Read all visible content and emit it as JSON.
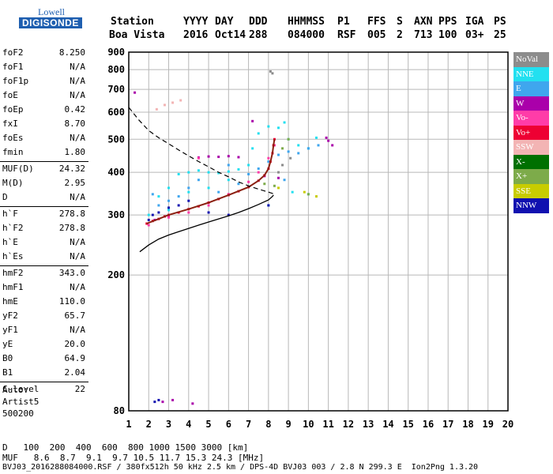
{
  "logo": {
    "line1": "Lowell",
    "line2": "DIGISONDE"
  },
  "header": {
    "row1": [
      "Station",
      "YYYY",
      "DAY",
      "DDD",
      "HHMMSS",
      "P1",
      "FFS",
      "S",
      "AXN",
      "PPS",
      "IGA",
      "PS"
    ],
    "row2": [
      "Boa Vista",
      "2016",
      "Oct14",
      "288",
      "084000",
      "RSF",
      "005",
      "2",
      "713",
      "100",
      "03+",
      "25"
    ]
  },
  "params": [
    {
      "k": "foF2",
      "v": "8.250"
    },
    {
      "k": "foF1",
      "v": "N/A"
    },
    {
      "k": "foF1p",
      "v": "N/A"
    },
    {
      "k": "foE",
      "v": "N/A"
    },
    {
      "k": "foEp",
      "v": "0.42"
    },
    {
      "k": "fxI",
      "v": "8.70"
    },
    {
      "k": "foEs",
      "v": "N/A"
    },
    {
      "k": "fmin",
      "v": "1.80"
    },
    {
      "k": "MUF(D)",
      "v": "24.32",
      "sep": true
    },
    {
      "k": "M(D)",
      "v": "2.95"
    },
    {
      "k": "D",
      "v": "N/A"
    },
    {
      "k": "h`F",
      "v": "278.8",
      "sep": true
    },
    {
      "k": "h`F2",
      "v": "278.8"
    },
    {
      "k": "h`E",
      "v": "N/A"
    },
    {
      "k": "h`Es",
      "v": "N/A"
    },
    {
      "k": "hmF2",
      "v": "343.0",
      "sep": true
    },
    {
      "k": "hmF1",
      "v": "N/A"
    },
    {
      "k": "hmE",
      "v": "110.0"
    },
    {
      "k": "yF2",
      "v": "65.7"
    },
    {
      "k": "yF1",
      "v": "N/A"
    },
    {
      "k": "yE",
      "v": "20.0"
    },
    {
      "k": "B0",
      "v": "64.9"
    },
    {
      "k": "B1",
      "v": "2.04"
    },
    {
      "k": "C-level",
      "v": "22",
      "sep": true
    }
  ],
  "auto": {
    "line1": "Auto:",
    "line2": "Artist5",
    "line3": "500200"
  },
  "legend": [
    {
      "label": "NoVal",
      "color": "#8c8c8c"
    },
    {
      "label": "NNE",
      "color": "#22e0f0"
    },
    {
      "label": "E",
      "color": "#3fa6ee"
    },
    {
      "label": "W",
      "color": "#aa00aa"
    },
    {
      "label": "Vo-",
      "color": "#ff3ca8"
    },
    {
      "label": "Vo+",
      "color": "#ee0033"
    },
    {
      "label": "SSW",
      "color": "#f3b4b4"
    },
    {
      "label": "X-",
      "color": "#007000"
    },
    {
      "label": "X+",
      "color": "#7dab4a"
    },
    {
      "label": "SSE",
      "color": "#c8cc00"
    },
    {
      "label": "NNW",
      "color": "#1010b0"
    }
  ],
  "bottom": {
    "d_label": "D",
    "d_values": "100  200  400  600  800 1000 1500 3000 [km]",
    "muf_label": "MUF",
    "muf_values": "8.6  8.7  9.1  9.7 10.5 11.7 15.3 24.3 [MHz]",
    "footer": "BVJ03_2016288084000.RSF / 380fx512h 50 kHz 2.5 km / DPS-4D BVJ03 003 / 2.8 N 299.3 E  Ion2Png 1.3.20"
  },
  "chart_data": {
    "type": "scatter",
    "title": "",
    "xlabel": "",
    "ylabel": "",
    "xlim": [
      1,
      20
    ],
    "ylim": [
      80,
      900
    ],
    "y_scale": "log",
    "x_ticks": [
      1,
      2,
      3,
      4,
      5,
      6,
      7,
      8,
      9,
      10,
      11,
      12,
      13,
      14,
      15,
      16,
      17,
      18,
      19,
      20
    ],
    "y_ticks": [
      80,
      200,
      300,
      400,
      500,
      600,
      700,
      800,
      900
    ],
    "grid": true,
    "series": [
      {
        "name": "NNE",
        "color": "#22e0f0",
        "points": [
          [
            2.0,
            300
          ],
          [
            2.5,
            340
          ],
          [
            3.0,
            360
          ],
          [
            3.5,
            395
          ],
          [
            4.0,
            400
          ],
          [
            4.5,
            405
          ],
          [
            5.0,
            400
          ],
          [
            5.5,
            398
          ],
          [
            6.0,
            402
          ],
          [
            6.5,
            408
          ],
          [
            7.0,
            420
          ],
          [
            7.2,
            470
          ],
          [
            7.5,
            520
          ],
          [
            8.0,
            545
          ],
          [
            8.5,
            540
          ],
          [
            9.0,
            500
          ],
          [
            9.5,
            480
          ],
          [
            10.0,
            470
          ],
          [
            10.4,
            505
          ],
          [
            9.2,
            350
          ],
          [
            10.0,
            345
          ],
          [
            6.0,
            380
          ],
          [
            5.0,
            360
          ],
          [
            4.0,
            350
          ],
          [
            3.0,
            310
          ],
          [
            8.8,
            560
          ],
          [
            8.0,
            320
          ]
        ]
      },
      {
        "name": "E",
        "color": "#3fa6ee",
        "points": [
          [
            2.5,
            320
          ],
          [
            3.0,
            330
          ],
          [
            3.5,
            340
          ],
          [
            4.0,
            360
          ],
          [
            4.5,
            380
          ],
          [
            5.5,
            350
          ],
          [
            6.5,
            370
          ],
          [
            7.0,
            395
          ],
          [
            7.5,
            410
          ],
          [
            8.0,
            430
          ],
          [
            8.5,
            450
          ],
          [
            9.0,
            460
          ],
          [
            9.5,
            455
          ],
          [
            10.0,
            470
          ],
          [
            10.5,
            480
          ],
          [
            6.0,
            420
          ],
          [
            8.8,
            380
          ],
          [
            2.2,
            345
          ]
        ]
      },
      {
        "name": "W",
        "color": "#aa00aa",
        "points": [
          [
            4.5,
            442
          ],
          [
            5.0,
            445
          ],
          [
            5.5,
            444
          ],
          [
            6.0,
            446
          ],
          [
            6.5,
            443
          ],
          [
            7.8,
            390
          ],
          [
            8.5,
            385
          ],
          [
            11.0,
            495
          ],
          [
            11.2,
            480
          ],
          [
            10.9,
            505
          ],
          [
            1.3,
            685
          ],
          [
            2.7,
            85
          ],
          [
            3.2,
            86
          ],
          [
            4.2,
            84
          ],
          [
            7.2,
            565
          ],
          [
            2.3,
            290
          ],
          [
            3.0,
            298
          ]
        ]
      },
      {
        "name": "Vo-",
        "color": "#ff3ca8",
        "points": [
          [
            2.0,
            280
          ],
          [
            3.0,
            295
          ],
          [
            4.0,
            305
          ],
          [
            5.0,
            320
          ],
          [
            6.0,
            345
          ],
          [
            7.0,
            375
          ],
          [
            7.5,
            400
          ],
          [
            8.0,
            440
          ],
          [
            8.3,
            480
          ],
          [
            4.5,
            440
          ]
        ]
      },
      {
        "name": "Vo+",
        "color": "#ee0033",
        "points": [
          [
            1.9,
            283
          ],
          [
            2.2,
            288
          ],
          [
            2.5,
            292
          ],
          [
            2.8,
            297
          ],
          [
            3.0,
            300
          ],
          [
            3.5,
            305
          ],
          [
            4.0,
            312
          ],
          [
            4.5,
            318
          ],
          [
            5.0,
            326
          ],
          [
            5.5,
            334
          ],
          [
            6.0,
            343
          ],
          [
            6.5,
            352
          ],
          [
            7.0,
            362
          ],
          [
            7.5,
            378
          ],
          [
            7.8,
            392
          ],
          [
            8.0,
            410
          ],
          [
            8.1,
            430
          ],
          [
            8.2,
            455
          ],
          [
            8.25,
            480
          ],
          [
            8.3,
            500
          ]
        ]
      },
      {
        "name": "SSW",
        "color": "#f3b4b4",
        "points": [
          [
            2.4,
            612
          ],
          [
            2.8,
            630
          ],
          [
            3.2,
            640
          ],
          [
            3.6,
            650
          ]
        ]
      },
      {
        "name": "X+",
        "color": "#7dab4a",
        "points": [
          [
            7.8,
            370
          ],
          [
            8.3,
            365
          ],
          [
            8.7,
            470
          ],
          [
            9.0,
            500
          ],
          [
            10.0,
            345
          ]
        ]
      },
      {
        "name": "SSE",
        "color": "#c8cc00",
        "points": [
          [
            8.5,
            360
          ],
          [
            10.4,
            340
          ],
          [
            9.8,
            350
          ]
        ]
      },
      {
        "name": "NNW",
        "color": "#1010b0",
        "points": [
          [
            2.0,
            290
          ],
          [
            2.2,
            300
          ],
          [
            2.5,
            305
          ],
          [
            3.0,
            315
          ],
          [
            3.5,
            320
          ],
          [
            4.0,
            330
          ],
          [
            5.0,
            305
          ],
          [
            6.0,
            300
          ],
          [
            8.0,
            320
          ],
          [
            2.3,
            85
          ],
          [
            2.5,
            86
          ]
        ]
      },
      {
        "name": "NoVal",
        "color": "#8c8c8c",
        "points": [
          [
            8.2,
            780
          ],
          [
            8.1,
            790
          ],
          [
            8.5,
            400
          ],
          [
            8.7,
            420
          ],
          [
            9.1,
            440
          ]
        ]
      }
    ],
    "profile_curve": [
      [
        1.55,
        234
      ],
      [
        2.0,
        245
      ],
      [
        2.5,
        255
      ],
      [
        3.0,
        262
      ],
      [
        3.5,
        268
      ],
      [
        4.0,
        274
      ],
      [
        4.5,
        280
      ],
      [
        5.0,
        286
      ],
      [
        5.5,
        292
      ],
      [
        6.0,
        298
      ],
      [
        6.5,
        305
      ],
      [
        7.0,
        313
      ],
      [
        7.5,
        322
      ],
      [
        8.0,
        332
      ],
      [
        8.2,
        340
      ],
      [
        8.25,
        343
      ]
    ],
    "muf_dashed_curve": [
      [
        1.0,
        620
      ],
      [
        1.5,
        570
      ],
      [
        2.0,
        530
      ],
      [
        2.5,
        505
      ],
      [
        3.0,
        485
      ],
      [
        3.5,
        465
      ],
      [
        4.0,
        447
      ],
      [
        4.5,
        430
      ],
      [
        5.0,
        415
      ],
      [
        5.5,
        400
      ],
      [
        6.0,
        388
      ],
      [
        6.5,
        375
      ],
      [
        7.0,
        365
      ],
      [
        7.5,
        357
      ],
      [
        8.0,
        350
      ],
      [
        8.25,
        346
      ]
    ],
    "fit_curve": [
      [
        1.9,
        283
      ],
      [
        2.5,
        292
      ],
      [
        3.0,
        300
      ],
      [
        4.0,
        312
      ],
      [
        5.0,
        326
      ],
      [
        6.0,
        343
      ],
      [
        7.0,
        362
      ],
      [
        7.5,
        378
      ],
      [
        7.8,
        392
      ],
      [
        8.0,
        410
      ],
      [
        8.1,
        430
      ],
      [
        8.2,
        455
      ],
      [
        8.25,
        480
      ],
      [
        8.3,
        500
      ]
    ]
  }
}
